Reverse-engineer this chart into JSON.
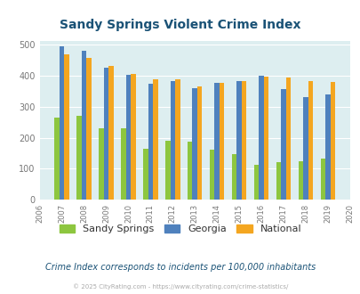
{
  "title": "Sandy Springs Violent Crime Index",
  "years": [
    2007,
    2008,
    2009,
    2010,
    2011,
    2012,
    2013,
    2014,
    2015,
    2016,
    2017,
    2018,
    2019
  ],
  "sandy_springs": [
    265,
    270,
    230,
    230,
    163,
    190,
    188,
    160,
    147,
    112,
    120,
    124,
    132
  ],
  "georgia": [
    492,
    478,
    425,
    401,
    374,
    381,
    360,
    376,
    381,
    400,
    356,
    329,
    340
  ],
  "national": [
    467,
    455,
    431,
    405,
    387,
    387,
    365,
    376,
    383,
    397,
    394,
    381,
    380
  ],
  "color_sandy": "#8dc63f",
  "color_georgia": "#4f81bd",
  "color_national": "#f4a620",
  "bg_color": "#ddeef0",
  "title_color": "#1a5276",
  "axis_label_color": "#777777",
  "legend_label_color": "#333333",
  "subtitle_color": "#1a5276",
  "footer_color": "#aaaaaa",
  "subtitle": "Crime Index corresponds to incidents per 100,000 inhabitants",
  "footer": "© 2025 CityRating.com - https://www.cityrating.com/crime-statistics/",
  "ylim": [
    0,
    510
  ],
  "yticks": [
    0,
    100,
    200,
    300,
    400,
    500
  ],
  "xtick_start": 2006,
  "xtick_end": 2020,
  "bar_width": 0.22
}
